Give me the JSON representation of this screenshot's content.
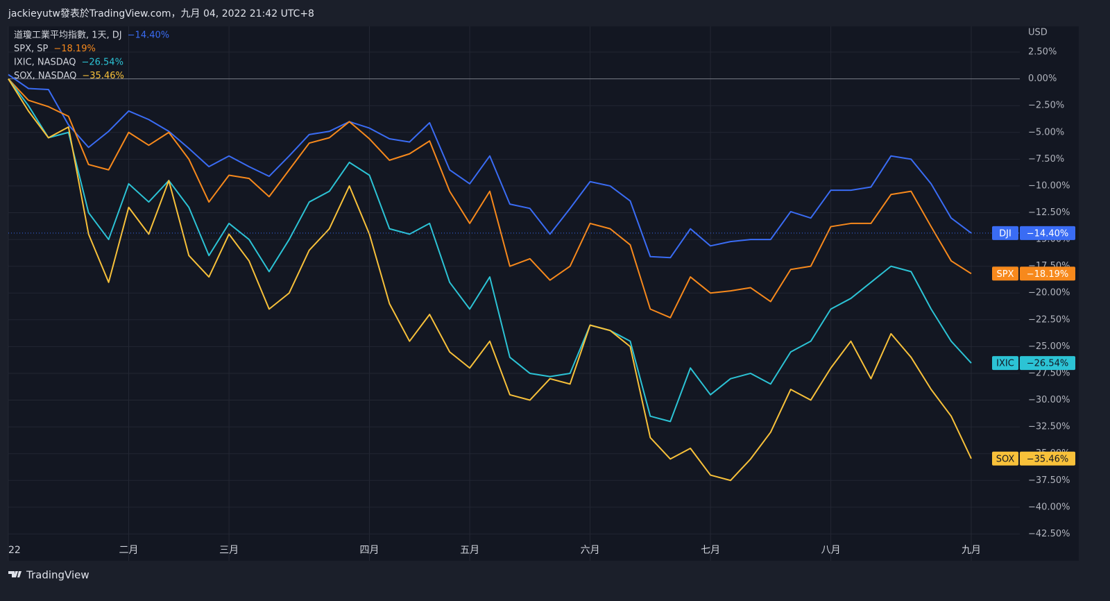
{
  "header": "jackieyutw發表於TradingView.com，九月 04, 2022 21:42 UTC+8",
  "footer": "TradingView",
  "chart_data": {
    "type": "line",
    "y_unit": "USD",
    "categories": [
      "22",
      null,
      null,
      null,
      null,
      null,
      "二月",
      null,
      null,
      null,
      null,
      "三月",
      null,
      null,
      null,
      null,
      null,
      null,
      "四月",
      null,
      null,
      null,
      null,
      "五月",
      null,
      null,
      null,
      null,
      null,
      "六月",
      null,
      null,
      null,
      null,
      null,
      "七月",
      null,
      null,
      null,
      null,
      null,
      "八月",
      null,
      null,
      null,
      null,
      null,
      null,
      "九月"
    ],
    "ylim": [
      -45,
      4.9
    ],
    "baseline": 0,
    "grid": true,
    "yticks": [
      {
        "value": 2.5,
        "label": "2.50%"
      },
      {
        "value": 0,
        "label": "0.00%"
      },
      {
        "value": -2.5,
        "label": "−2.50%"
      },
      {
        "value": -5,
        "label": "−5.00%"
      },
      {
        "value": -7.5,
        "label": "−7.50%"
      },
      {
        "value": -10,
        "label": "−10.00%"
      },
      {
        "value": -12.5,
        "label": "−12.50%"
      },
      {
        "value": -15,
        "label": "−15.00%"
      },
      {
        "value": -17.5,
        "label": "−17.50%"
      },
      {
        "value": -20,
        "label": "−20.00%"
      },
      {
        "value": -22.5,
        "label": "−22.50%"
      },
      {
        "value": -25,
        "label": "−25.00%"
      },
      {
        "value": -27.5,
        "label": "−27.50%"
      },
      {
        "value": -30,
        "label": "−30.00%"
      },
      {
        "value": -32.5,
        "label": "−32.50%"
      },
      {
        "value": -35,
        "label": "−35.00%"
      },
      {
        "value": -37.5,
        "label": "−37.50%"
      },
      {
        "value": -40,
        "label": "−40.00%"
      },
      {
        "value": -42.5,
        "label": "−42.50%"
      }
    ],
    "series": [
      {
        "name": "道瓊工業平均指數, 1天, DJ",
        "symbol": "DJI",
        "color": "#3a6cf4",
        "tag_text_color": "#ffffff",
        "last_value_label": "−14.40%",
        "values": [
          0.4,
          -0.9,
          -1.0,
          -4.3,
          -6.4,
          -4.9,
          -3.0,
          -3.8,
          -4.9,
          -6.5,
          -8.2,
          -7.2,
          -8.2,
          -9.1,
          -7.2,
          -5.2,
          -4.9,
          -4.0,
          -4.6,
          -5.6,
          -5.9,
          -4.1,
          -8.5,
          -9.8,
          -7.2,
          -11.7,
          -12.1,
          -14.5,
          -12.1,
          -9.6,
          -10.0,
          -11.4,
          -16.6,
          -16.7,
          -14.0,
          -15.6,
          -15.2,
          -15.0,
          -15.0,
          -12.4,
          -13.0,
          -10.4,
          -10.4,
          -10.1,
          -7.2,
          -7.5,
          -9.8,
          -13.0,
          -14.4
        ]
      },
      {
        "name": "SPX, SP",
        "symbol": "SPX",
        "color": "#f7891c",
        "tag_text_color": "#ffffff",
        "last_value_label": "−18.19%",
        "values": [
          0,
          -2.0,
          -2.6,
          -3.5,
          -8.0,
          -8.5,
          -5.0,
          -6.2,
          -5.0,
          -7.5,
          -11.5,
          -9.0,
          -9.3,
          -11.0,
          -8.5,
          -6.0,
          -5.5,
          -4.0,
          -5.6,
          -7.6,
          -7.0,
          -5.8,
          -10.5,
          -13.5,
          -10.5,
          -17.5,
          -16.8,
          -18.8,
          -17.5,
          -13.5,
          -14.0,
          -15.5,
          -21.5,
          -22.3,
          -18.5,
          -20.0,
          -19.8,
          -19.5,
          -20.8,
          -17.8,
          -17.5,
          -13.8,
          -13.5,
          -13.5,
          -10.8,
          -10.5,
          -13.8,
          -17.0,
          -18.19
        ]
      },
      {
        "name": "IXIC, NASDAQ",
        "symbol": "IXIC",
        "color": "#2cc3d5",
        "tag_text_color": "#131722",
        "last_value_label": "−26.54%",
        "values": [
          0,
          -2.5,
          -5.5,
          -5.0,
          -12.5,
          -15.0,
          -9.8,
          -11.5,
          -9.5,
          -12.0,
          -16.5,
          -13.5,
          -15.0,
          -18.0,
          -15.0,
          -11.5,
          -10.5,
          -7.8,
          -9.0,
          -14.0,
          -14.5,
          -13.5,
          -19.0,
          -21.5,
          -18.5,
          -26.0,
          -27.5,
          -27.8,
          -27.5,
          -23.0,
          -23.5,
          -24.5,
          -31.5,
          -32.0,
          -27.0,
          -29.5,
          -28.0,
          -27.5,
          -28.5,
          -25.5,
          -24.5,
          -21.5,
          -20.5,
          -19.0,
          -17.5,
          -18.0,
          -21.5,
          -24.5,
          -26.54
        ]
      },
      {
        "name": "SOX, NASDAQ",
        "symbol": "SOX",
        "color": "#f8c13a",
        "tag_text_color": "#131722",
        "last_value_label": "−35.46%",
        "values": [
          0,
          -3.0,
          -5.5,
          -4.5,
          -14.5,
          -19.0,
          -12.0,
          -14.5,
          -9.5,
          -16.5,
          -18.5,
          -14.5,
          -17.0,
          -21.5,
          -20.0,
          -16.0,
          -14.0,
          -10.0,
          -14.5,
          -21.0,
          -24.5,
          -22.0,
          -25.5,
          -27.0,
          -24.5,
          -29.5,
          -30.0,
          -28.0,
          -28.5,
          -23.0,
          -23.5,
          -25.0,
          -33.5,
          -35.5,
          -34.5,
          -37.0,
          -37.5,
          -35.5,
          -33.0,
          -29.0,
          -30.0,
          -27.0,
          -24.5,
          -28.0,
          -23.8,
          -26.0,
          -29.0,
          -31.5,
          -35.46
        ]
      }
    ]
  }
}
